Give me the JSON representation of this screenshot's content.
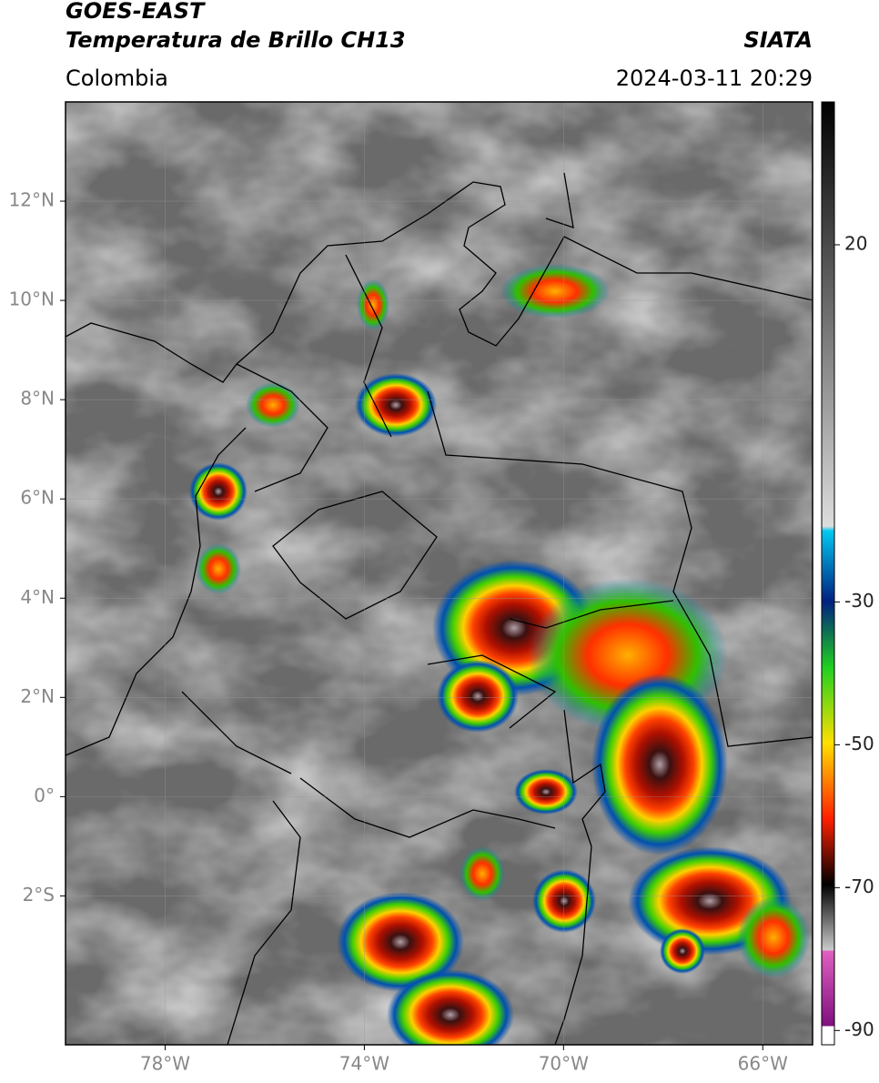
{
  "header": {
    "title": "GOES-EAST",
    "subtitle": "Temperatura de Brillo CH13",
    "source": "SIATA",
    "region": "Colombia",
    "datetime": "2024-03-11 20:29"
  },
  "map": {
    "xlim": [
      -80,
      -65
    ],
    "ylim": [
      -5,
      14
    ],
    "xticks": [
      {
        "value": -78,
        "label": "78°W"
      },
      {
        "value": -74,
        "label": "74°W"
      },
      {
        "value": -70,
        "label": "70°W"
      },
      {
        "value": -66,
        "label": "66°W"
      }
    ],
    "yticks": [
      {
        "value": 12,
        "label": "12°N"
      },
      {
        "value": 10,
        "label": "10°N"
      },
      {
        "value": 8,
        "label": "8°N"
      },
      {
        "value": 6,
        "label": "6°N"
      },
      {
        "value": 4,
        "label": "4°N"
      },
      {
        "value": 2,
        "label": "2°N"
      },
      {
        "value": 0,
        "label": "0°"
      },
      {
        "value": -2,
        "label": "2°S"
      }
    ],
    "grid": true
  },
  "colorbar": {
    "lim": [
      -92,
      40
    ],
    "ticks": [
      20,
      -30,
      -50,
      -70,
      -90
    ]
  }
}
